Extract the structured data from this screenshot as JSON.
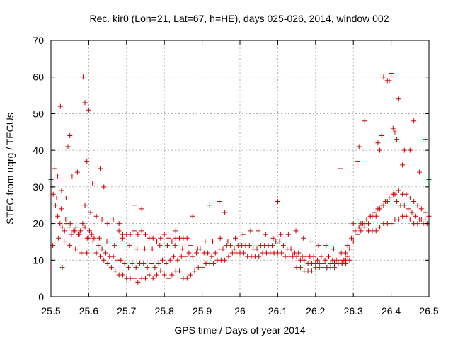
{
  "chart_data": {
    "type": "scatter",
    "title": "Rec. kir0 (Lon=21, Lat=67, h=HE), days 025-026, 2014, window 002",
    "xlabel": "GPS time / Days of year 2014",
    "ylabel": "STEC from uqrg / TECUs",
    "xlim": [
      25.5,
      26.5
    ],
    "ylim": [
      0,
      70
    ],
    "xticks": [
      "25.5",
      "25.6",
      "25.7",
      "25.8",
      "25.9",
      "26",
      "26.1",
      "26.2",
      "26.3",
      "26.4",
      "26.5"
    ],
    "yticks": [
      "0",
      "10",
      "20",
      "30",
      "40",
      "50",
      "60",
      "70"
    ],
    "grid": true,
    "marker": "plus",
    "point_color": "#cc0000",
    "series": [
      {
        "x": [
          25.5,
          25.506,
          25.512,
          25.518,
          25.524,
          25.53,
          25.536,
          25.542,
          25.548,
          25.554,
          25.56,
          25.566,
          25.572,
          25.578,
          25.584,
          25.59,
          25.596,
          25.602,
          25.608,
          25.614,
          25.503,
          25.515,
          25.527,
          25.539,
          25.551,
          25.563,
          25.575,
          25.587,
          25.599,
          25.611,
          25.505,
          25.52,
          25.535,
          25.55,
          25.565,
          25.58,
          25.595,
          25.525,
          25.53,
          25.545,
          25.55,
          25.585,
          25.59,
          25.595,
          25.6,
          25.61,
          25.64,
          25.63,
          25.72,
          25.74,
          25.83,
          25.875,
          25.92,
          25.945,
          25.96,
          26.1,
          25.51,
          25.518,
          25.528,
          25.54,
          25.556,
          25.57,
          25.59,
          25.605,
          25.62,
          25.635,
          25.65,
          25.665,
          25.68,
          25.69,
          25.62,
          25.63,
          25.64,
          25.65,
          25.66,
          25.67,
          25.68,
          25.69,
          25.7,
          25.71,
          25.72,
          25.73,
          25.74,
          25.75,
          25.76,
          25.77,
          25.78,
          25.79,
          25.8,
          25.81,
          25.82,
          25.83,
          25.84,
          25.85,
          25.86,
          25.87,
          25.88,
          25.89,
          25.9,
          25.91,
          25.92,
          25.93,
          25.94,
          25.95,
          25.96,
          25.97,
          25.98,
          25.99,
          25.625,
          25.635,
          25.645,
          25.655,
          25.665,
          25.675,
          25.685,
          25.695,
          25.705,
          25.715,
          25.725,
          25.735,
          25.745,
          25.755,
          25.765,
          25.775,
          25.785,
          25.795,
          25.805,
          25.815,
          25.825,
          25.835,
          25.845,
          25.855,
          25.865,
          25.875,
          25.885,
          25.895,
          25.905,
          25.915,
          25.925,
          25.935,
          25.945,
          25.955,
          25.965,
          25.975,
          25.985,
          25.995,
          25.628,
          25.648,
          25.668,
          25.688,
          25.708,
          25.728,
          25.748,
          25.768,
          25.788,
          25.808,
          25.828,
          25.848,
          25.868,
          25.888,
          25.908,
          25.928,
          25.948,
          25.968,
          25.988,
          25.68,
          25.69,
          25.7,
          25.71,
          25.72,
          25.73,
          25.74,
          25.75,
          25.76,
          25.77,
          25.78,
          25.79,
          25.8,
          25.81,
          25.82,
          25.83,
          25.84,
          25.85,
          25.86,
          26.0,
          26.01,
          26.02,
          26.03,
          26.04,
          26.05,
          26.06,
          26.07,
          26.08,
          26.09,
          26.1,
          26.11,
          26.12,
          26.13,
          26.14,
          26.15,
          26.16,
          26.17,
          26.18,
          26.19,
          26.2,
          26.21,
          26.22,
          26.23,
          26.24,
          26.25,
          26.26,
          26.27,
          26.28,
          26.005,
          26.015,
          26.025,
          26.035,
          26.045,
          26.055,
          26.065,
          26.075,
          26.085,
          26.095,
          26.105,
          26.115,
          26.125,
          26.135,
          26.145,
          26.155,
          26.165,
          26.175,
          26.185,
          26.195,
          26.205,
          26.215,
          26.225,
          26.235,
          26.245,
          26.255,
          26.265,
          26.275,
          26.285,
          26.008,
          26.028,
          26.048,
          26.068,
          26.088,
          26.108,
          26.128,
          26.148,
          26.168,
          26.188,
          26.208,
          26.228,
          26.248,
          26.268,
          26.15,
          26.16,
          26.17,
          26.18,
          26.19,
          26.2,
          26.21,
          26.22,
          26.23,
          26.24,
          26.25,
          26.26,
          26.27,
          26.28,
          26.29,
          26.28,
          26.29,
          26.3,
          26.31,
          26.32,
          26.33,
          26.34,
          26.35,
          26.36,
          26.37,
          26.38,
          26.39,
          26.4,
          26.41,
          26.42,
          26.43,
          26.44,
          26.45,
          26.46,
          26.47,
          26.48,
          26.49,
          26.5,
          26.285,
          26.295,
          26.305,
          26.315,
          26.325,
          26.335,
          26.345,
          26.355,
          26.365,
          26.375,
          26.385,
          26.395,
          26.405,
          26.415,
          26.425,
          26.435,
          26.445,
          26.455,
          26.465,
          26.475,
          26.485,
          26.495,
          26.3,
          26.31,
          26.32,
          26.33,
          26.34,
          26.35,
          26.36,
          26.37,
          26.38,
          26.39,
          26.4,
          26.41,
          26.42,
          26.43,
          26.44,
          26.45,
          26.46,
          26.47,
          26.48,
          26.49,
          26.265,
          26.31,
          26.315,
          26.33,
          26.365,
          26.37,
          26.375,
          26.38,
          26.39,
          26.395,
          26.4,
          26.405,
          26.41,
          26.415,
          26.42,
          26.43,
          26.435,
          26.45,
          26.46,
          26.475,
          26.49,
          26.5
        ],
        "y": [
          32,
          28,
          25,
          22,
          20,
          19,
          18,
          20,
          19,
          17,
          18,
          19,
          17,
          18,
          20,
          19,
          16,
          18,
          17,
          16,
          30,
          27,
          24,
          21,
          20,
          18,
          17,
          19,
          16,
          15,
          14,
          16,
          15,
          14,
          13,
          12,
          12,
          52,
          8,
          41,
          44,
          60,
          53,
          37,
          51,
          31,
          30,
          35,
          25,
          24,
          18,
          22,
          25,
          26,
          23,
          26,
          35,
          33,
          29,
          27,
          33,
          34,
          25,
          23,
          22,
          21,
          20,
          21,
          20,
          16,
          12,
          11,
          10,
          9,
          8,
          7,
          6,
          6,
          5,
          5,
          5,
          4,
          5,
          5,
          6,
          5,
          6,
          7,
          6,
          5,
          6,
          7,
          7,
          5,
          5,
          6,
          7,
          8,
          8,
          9,
          9,
          9,
          10,
          10,
          10,
          11,
          12,
          12,
          14,
          13,
          12,
          11,
          11,
          10,
          10,
          9,
          8,
          9,
          8,
          9,
          9,
          8,
          9,
          8,
          9,
          10,
          9,
          10,
          11,
          10,
          11,
          11,
          12,
          11,
          12,
          13,
          12,
          12,
          11,
          12,
          13,
          13,
          14,
          14,
          13,
          14,
          16,
          15,
          14,
          15,
          14,
          13,
          13,
          13,
          14,
          14,
          14,
          13,
          14,
          13,
          15,
          15,
          16,
          15,
          16,
          18,
          17,
          17,
          17,
          18,
          17,
          18,
          17,
          16,
          16,
          15,
          16,
          17,
          16,
          15,
          16,
          16,
          16,
          16,
          12,
          12,
          11,
          11,
          11,
          11,
          12,
          12,
          12,
          12,
          12,
          12,
          11,
          11,
          11,
          11,
          10,
          10,
          9,
          9,
          9,
          9,
          9,
          8,
          8,
          8,
          9,
          9,
          9,
          14,
          14,
          14,
          13,
          13,
          14,
          14,
          14,
          14,
          15,
          15,
          14,
          13,
          13,
          12,
          12,
          11,
          11,
          11,
          11,
          10,
          11,
          10,
          11,
          10,
          10,
          10,
          10,
          11,
          17,
          18,
          18,
          17,
          16,
          17,
          17,
          18,
          16,
          15,
          14,
          14,
          13,
          12,
          8,
          8,
          7,
          7,
          7,
          8,
          8,
          8,
          8,
          9,
          9,
          9,
          9,
          10,
          10,
          12,
          13,
          15,
          17,
          18,
          20,
          20,
          22,
          22,
          24,
          25,
          26,
          27,
          28,
          29,
          28,
          28,
          27,
          26,
          25,
          24,
          23,
          22,
          14,
          16,
          18,
          19,
          20,
          21,
          22,
          23,
          24,
          25,
          26,
          27,
          28,
          26,
          25,
          25,
          24,
          23,
          22,
          21,
          20,
          20,
          20,
          21,
          20,
          19,
          18,
          18,
          18,
          19,
          20,
          20,
          20,
          21,
          21,
          22,
          22,
          21,
          20,
          20,
          21,
          21,
          35,
          37,
          41,
          48,
          42,
          40,
          44,
          60,
          59,
          59,
          61,
          46,
          45,
          43,
          54,
          36,
          40,
          40,
          48,
          34,
          43,
          32
        ]
      }
    ]
  }
}
